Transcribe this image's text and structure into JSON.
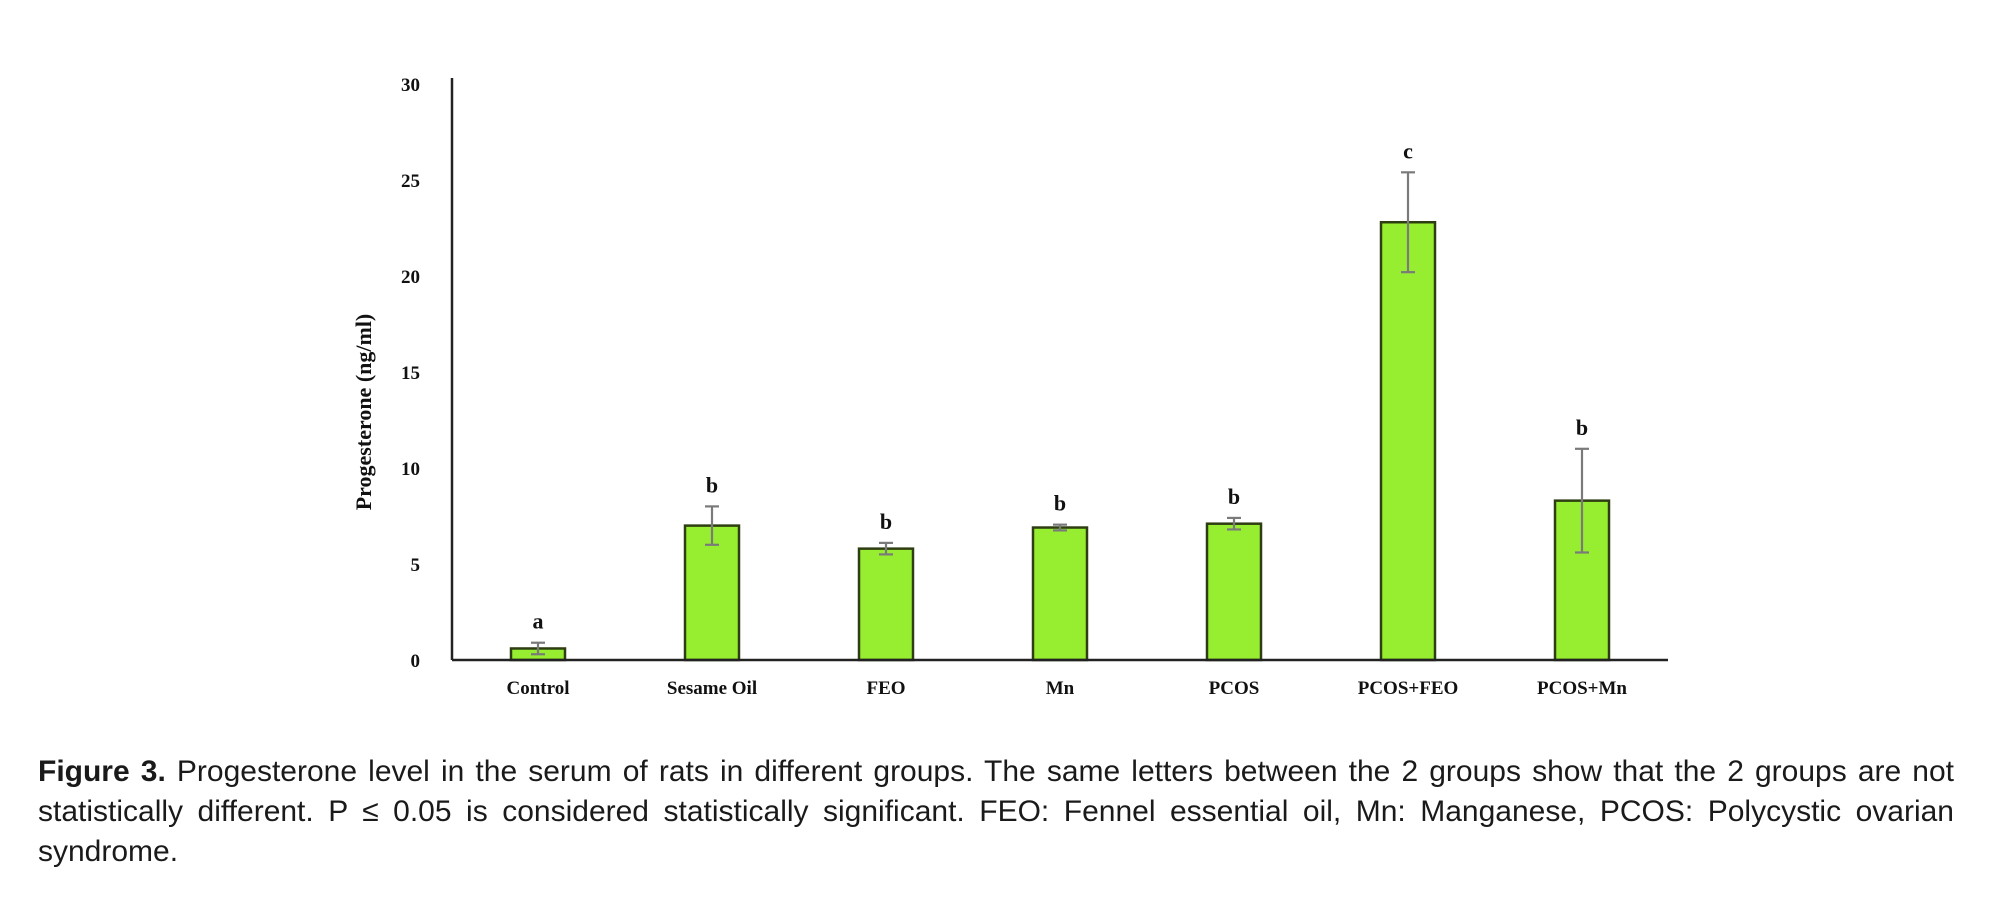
{
  "chart_data": {
    "type": "bar",
    "categories": [
      "Control",
      "Sesame Oil",
      "FEO",
      "Mn",
      "PCOS",
      "PCOS+FEO",
      "PCOS+Mn"
    ],
    "series": [
      {
        "values": [
          0.6,
          7.0,
          5.8,
          6.9,
          7.1,
          22.8,
          8.3
        ],
        "errors": [
          0.3,
          1.0,
          0.3,
          0.15,
          0.3,
          2.6,
          2.7
        ],
        "significance": [
          "a",
          "b",
          "b",
          "b",
          "b",
          "c",
          "b"
        ]
      }
    ],
    "ylabel": "Progesterone (ng/ml)",
    "xlabel": "",
    "ylim": [
      0,
      30
    ],
    "yticks": [
      "0",
      "5",
      "10",
      "15",
      "20",
      "25",
      "30"
    ],
    "grid": false,
    "bar_color": "#97ee30",
    "bar_edge_color": "#2f3d12",
    "error_bar_color": "#7a7a7a"
  },
  "caption": {
    "label": "Figure 3.",
    "text": " Progesterone level in the serum of rats in different groups. The same letters between the 2 groups show that the 2 groups are not statistically different. P ≤ 0.05 is considered statistically significant. FEO: Fennel essential oil, Mn: Manganese, PCOS: Polycystic ovarian syndrome."
  }
}
